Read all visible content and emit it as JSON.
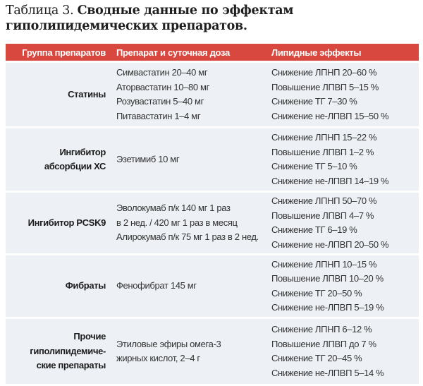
{
  "title": {
    "lead": "Таблица 3. ",
    "bold": "Сводные данные по эффектам гиполипидемических препаратов."
  },
  "header": {
    "group": "Группа препаратов",
    "drug": "Препарат и суточная доза",
    "effects": "Липидные эффекты"
  },
  "rows": [
    {
      "group": [
        "Статины"
      ],
      "drugs": [
        "Симвастатин 20–40 мг",
        "Аторвастатин 10–80 мг",
        "Розувастатин 5–40 мг",
        "Питавастатин 1–4 мг"
      ],
      "effects": [
        "Снижение ЛПНП 20–60 %",
        "Повышение ЛПВП 5–15 %",
        "Снижение ТГ 7–30 %",
        "Снижение не-ЛПВП 15–50 %"
      ]
    },
    {
      "group": [
        "Ингибитор",
        "абсорбции ХС"
      ],
      "drugs": [
        "Эзетимиб 10 мг"
      ],
      "effects": [
        "Снижение ЛПНП 15–22 %",
        "Повышение ЛПВП 1–2 %",
        "Снижение ТГ 5–10 %",
        "Снижение не-ЛПВП 14–19 %"
      ]
    },
    {
      "group": [
        "Ингибитор PCSK9"
      ],
      "drugs": [
        "Эволокумаб п/к 140 мг 1 раз",
        "в 2 нед. / 420 мг 1 раз в месяц",
        "Алирокумаб п/к 75 мг 1 раз в 2 нед."
      ],
      "effects": [
        "Снижение ЛПНП 50–70 %",
        "Повышение ЛПВП 4–7 %",
        "Снижение ТГ 6–19 %",
        "Снижение не-ЛПВП 20–50 %"
      ]
    },
    {
      "group": [
        "Фибраты"
      ],
      "drugs": [
        "Фенофибрат 145 мг"
      ],
      "effects": [
        "Снижение ЛПНП 10–15 %",
        "Повышение ЛПВП 10–20 %",
        "Снижение ТГ 20–50 %",
        "Снижение не-ЛПВП 5–19 %"
      ]
    },
    {
      "group": [
        "Прочие",
        "гиполипидемиче-",
        "ские препараты"
      ],
      "drugs": [
        "Этиловые эфиры омега-3",
        "жирных кислот, 2–4 г"
      ],
      "effects": [
        "Снижение ЛПНП 6–12 %",
        "Повышение ЛПВП до 7 %",
        "Снижение ТГ 20–45 %",
        "Снижение не-ЛПВП 5–14 %"
      ]
    }
  ]
}
